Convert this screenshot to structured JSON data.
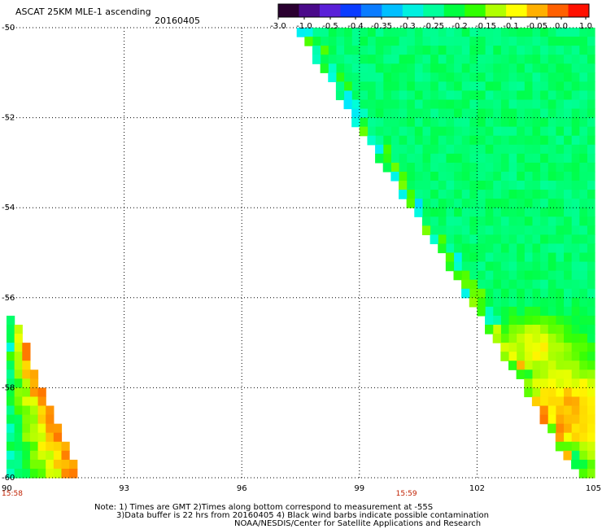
{
  "title": "ASCAT 25KM MLE-1 ascending",
  "date": "20160405",
  "notes": [
    "Note: 1) Times are GMT 2)Times along bottom correspond to measurement at -55S",
    "3)Data buffer is 22 hrs from 20160405 4) Black wind barbs indicate possible contamination",
    "NOAA/NESDIS/Center for Satellite Applications and Research"
  ],
  "chart_data": {
    "type": "heatmap",
    "title": "ASCAT 25KM MLE-1 ascending",
    "subtitle": "20160405",
    "xlim": [
      90,
      105
    ],
    "ylim": [
      -60,
      -50
    ],
    "x_ticks": [
      "90",
      "93",
      "96",
      "99",
      "102",
      "105"
    ],
    "y_ticks": [
      "-50",
      "-52",
      "-54",
      "-56",
      "-58",
      "-60"
    ],
    "time_labels": [
      {
        "x": 90,
        "text": "15:58"
      },
      {
        "x": 100.2,
        "text": "15:59"
      }
    ],
    "grid": true,
    "colorbar": {
      "labels": [
        "-3.0",
        "-1.0",
        "-0.5",
        "-0.4",
        "-0.35",
        "-0.3",
        "-0.25",
        "-0.2",
        "-0.15",
        "-0.1",
        "-0.05",
        "0.0",
        "1.0"
      ],
      "colors": [
        "#2a0030",
        "#4a0a8a",
        "#5a20d8",
        "#0a3cff",
        "#0a7cff",
        "#00bfff",
        "#00f0e0",
        "#00ff9c",
        "#00ff40",
        "#30ff00",
        "#b0ff00",
        "#ffff00",
        "#ffb000",
        "#ff6000",
        "#ff1000"
      ],
      "position": "top-right"
    },
    "swaths": [
      {
        "name": "east",
        "edge": [
          [
            97.4,
            -50.0
          ],
          [
            99.1,
            -52.4
          ],
          [
            101.5,
            -55.6
          ],
          [
            104.6,
            -60.0
          ]
        ],
        "x_max": 105,
        "values_desc": "mostly -0.25 to -0.15 with -0.3 cyan band near 99-100.5 lon, -0.05 to 0.0 in south-east corner"
      },
      {
        "name": "west",
        "edge": [
          [
            90.0,
            -56.4
          ],
          [
            91.7,
            -60.0
          ]
        ],
        "x_min": 90,
        "values_desc": "-0.2 to -0.15 near western edge, -0.05 to 0.0 towards eastern edge"
      }
    ]
  }
}
